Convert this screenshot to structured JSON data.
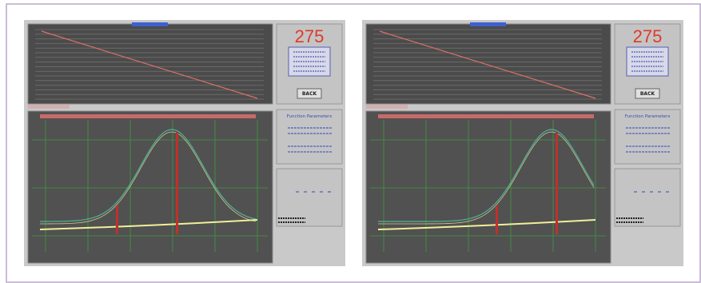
{
  "panels": [
    {
      "readout": "275",
      "button": "BACK",
      "params_title": "Function Parameters"
    },
    {
      "readout": "275",
      "button": "BACK",
      "params_title": "Function Parameters"
    }
  ]
}
